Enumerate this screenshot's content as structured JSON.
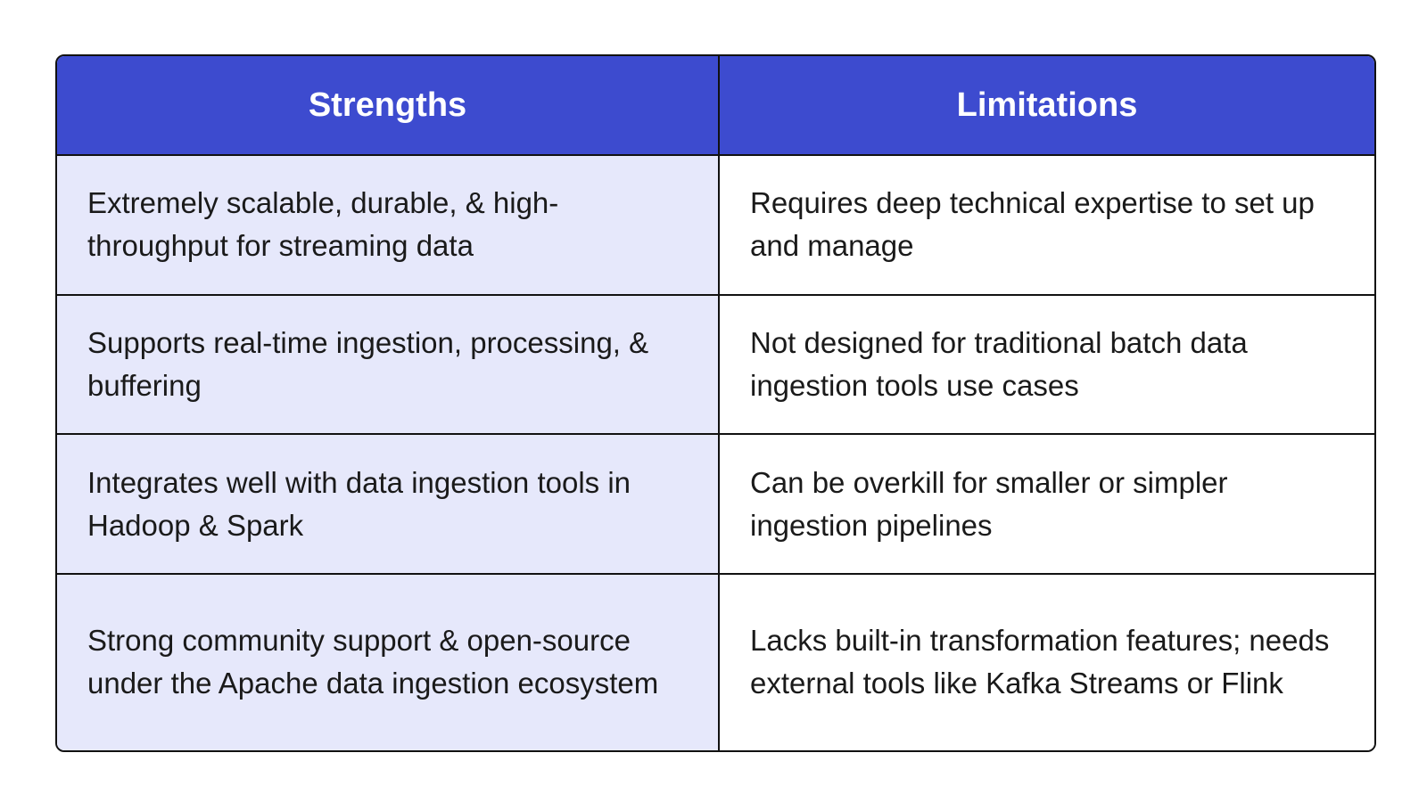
{
  "table": {
    "headers": {
      "strengths": "Strengths",
      "limitations": "Limitations"
    },
    "rows": [
      {
        "strength": "Extremely scalable, durable, & high-throughput for streaming data",
        "limitation": "Requires deep technical expertise to set up and manage"
      },
      {
        "strength": "Supports real-time ingestion, processing, & buffering",
        "limitation": "Not designed for traditional batch data ingestion tools use cases"
      },
      {
        "strength": "Integrates well with data ingestion tools in Hadoop & Spark",
        "limitation": "Can be overkill for smaller or simpler ingestion pipelines"
      },
      {
        "strength": "Strong community support & open-source under the Apache data ingestion ecosystem",
        "limitation": "Lacks built-in transformation features; needs external tools like Kafka Streams or Flink"
      }
    ]
  },
  "colors": {
    "header_bg": "#3d4bcf",
    "header_text": "#ffffff",
    "left_column_bg": "#e6e8fb",
    "right_column_bg": "#ffffff",
    "border": "#111111"
  }
}
